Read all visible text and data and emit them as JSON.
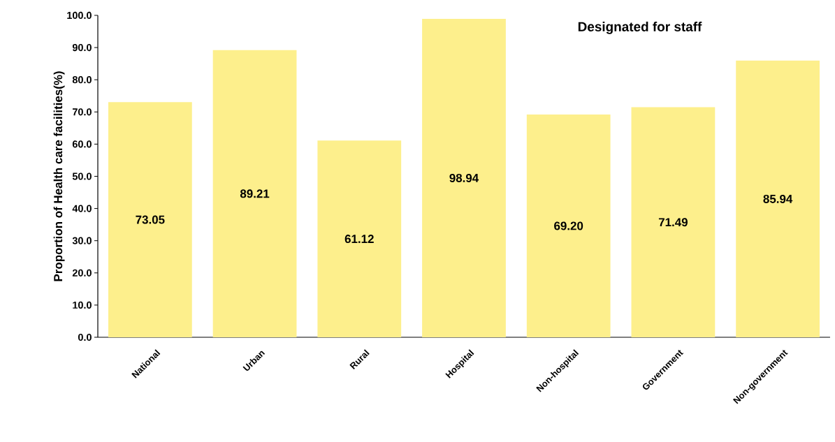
{
  "chart_data": {
    "type": "bar",
    "title": "Designated for staff",
    "ylabel": "Proportion of Health care facilities(%)",
    "categories": [
      "National",
      "Urban",
      "Rural",
      "Hospital",
      "Non-hospital",
      "Government",
      "Non-government"
    ],
    "values": [
      73.05,
      89.21,
      61.12,
      98.94,
      69.2,
      71.49,
      85.94
    ],
    "value_labels": [
      "73.05",
      "89.21",
      "61.12",
      "98.94",
      "69.20",
      "71.49",
      "85.94"
    ],
    "color": "#fdef8c",
    "ylim": [
      0,
      100
    ],
    "yticks": [
      {
        "value": 0,
        "label": "0.0"
      },
      {
        "value": 10,
        "label": "10.0"
      },
      {
        "value": 20,
        "label": "20.0"
      },
      {
        "value": 30,
        "label": "30.0"
      },
      {
        "value": 40,
        "label": "40.0"
      },
      {
        "value": 50,
        "label": "50.0"
      },
      {
        "value": 60,
        "label": "60.0"
      },
      {
        "value": 70,
        "label": "70.0"
      },
      {
        "value": 80,
        "label": "80.0"
      },
      {
        "value": 90,
        "label": "90.0"
      },
      {
        "value": 100,
        "label": "100.0"
      }
    ],
    "grid": false
  }
}
